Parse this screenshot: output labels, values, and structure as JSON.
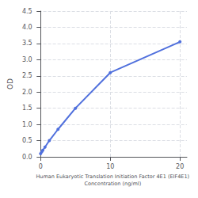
{
  "chart_data": {
    "type": "line",
    "xlabel": "Human Eukaryotic Translation Initiation Factor 4E1 (EIF4E1)\nConcentration (ng/ml)",
    "ylabel": "OD",
    "x": [
      0,
      0.156,
      0.313,
      0.625,
      1.25,
      2.5,
      5,
      10,
      20
    ],
    "values": [
      0.1,
      0.15,
      0.2,
      0.3,
      0.5,
      0.85,
      1.5,
      2.6,
      3.55
    ],
    "marker": "circle",
    "xlim": [
      -0.3,
      21
    ],
    "xticks": [
      0,
      10,
      20
    ],
    "ylim": [
      0,
      4.5
    ],
    "yticks": [
      {
        "value": 0,
        "label": "0.0"
      },
      0.5,
      {
        "value": 1.0,
        "label": "1.0"
      },
      1.5,
      {
        "value": 2.0,
        "label": "2.0"
      },
      2.5,
      {
        "value": 3.0,
        "label": "3.0"
      },
      3.5,
      {
        "value": 4.0,
        "label": "4.0"
      },
      4.5
    ],
    "grid": true
  }
}
